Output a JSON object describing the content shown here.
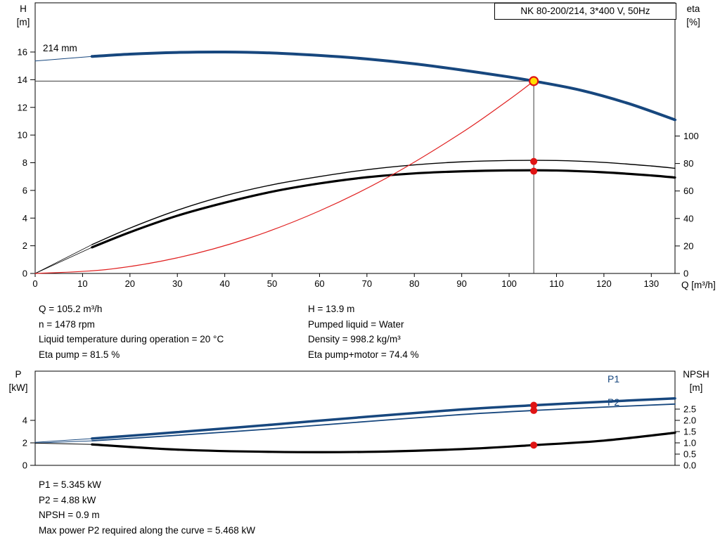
{
  "title_box": "NK 80-200/214, 3*400 V, 50Hz",
  "labels": {
    "h_axis": "H\n[m]",
    "eta_axis": "eta\n[%]",
    "q_axis": "Q [m³/h]",
    "p_axis": "P\n[kW]",
    "npsh_axis": "NPSH\n[m]",
    "impeller": "214 mm",
    "p1": "P1",
    "p2": "P2"
  },
  "info_top": {
    "left": [
      "Q = 105.2 m³/h",
      "n = 1478 rpm",
      "Liquid temperature during operation = 20 °C",
      "Eta pump = 81.5 %"
    ],
    "right": [
      "H = 13.9 m",
      "Pumped liquid = Water",
      "Density = 998.2 kg/m³",
      "Eta pump+motor = 74.4 %"
    ]
  },
  "info_bottom": [
    "P1 = 5.345 kW",
    "P2 = 4.88 kW",
    "NPSH = 0.9 m",
    "Max power P2 required along the curve = 5.468 kW"
  ],
  "colors": {
    "curve_blue": "#17477e",
    "curve_black": "#000000",
    "system_red": "#e02020",
    "duty_yellow": "#ffdf00",
    "dot_red": "#e01414",
    "axis": "#000000"
  },
  "chart_data": [
    {
      "type": "line",
      "title": "NK 80-200/214, 3*400 V, 50Hz",
      "xlabel": "Q [m³/h]",
      "ylabel_left": "H [m]",
      "ylabel_right": "eta [%]",
      "xlim": [
        0,
        135
      ],
      "ylim_left": [
        0,
        19.5
      ],
      "ylim_right": [
        0,
        100
      ],
      "x_ticks": [
        0,
        10,
        20,
        30,
        40,
        50,
        60,
        70,
        80,
        90,
        100,
        110,
        120,
        130
      ],
      "y_ticks_left": [
        0,
        2,
        4,
        6,
        8,
        10,
        12,
        14,
        16
      ],
      "y_ticks_right": [
        0,
        20,
        40,
        60,
        80,
        100
      ],
      "grid": false,
      "duty_point": {
        "q": 105.2,
        "h": 13.9
      },
      "series": [
        {
          "name": "efficiency-pump-lead-in",
          "axis": "eta",
          "color": "#000000",
          "width": 0.8,
          "points": [
            [
              0,
              0
            ],
            [
              12,
              21
            ]
          ]
        },
        {
          "name": "efficiency-pump-motor-lead-in",
          "axis": "eta",
          "color": "#000000",
          "width": 0.8,
          "points": [
            [
              0,
              0
            ],
            [
              12,
              19
            ]
          ]
        },
        {
          "name": "efficiency-pump",
          "axis": "eta",
          "color": "#000000",
          "width": 1.4,
          "points": [
            [
              12,
              21
            ],
            [
              20,
              33
            ],
            [
              30,
              46
            ],
            [
              40,
              56.5
            ],
            [
              50,
              64.5
            ],
            [
              60,
              70.5
            ],
            [
              70,
              75.5
            ],
            [
              80,
              79
            ],
            [
              90,
              81.2
            ],
            [
              100,
              82.2
            ],
            [
              110,
              82.2
            ],
            [
              120,
              80.8
            ],
            [
              130,
              78.2
            ],
            [
              135,
              76.5
            ]
          ]
        },
        {
          "name": "efficiency-pump-motor",
          "axis": "eta",
          "color": "#000000",
          "width": 3.2,
          "points": [
            [
              12,
              19
            ],
            [
              20,
              30
            ],
            [
              30,
              42
            ],
            [
              40,
              51.5
            ],
            [
              50,
              59.5
            ],
            [
              60,
              65.5
            ],
            [
              70,
              70
            ],
            [
              80,
              72.8
            ],
            [
              90,
              74.3
            ],
            [
              100,
              75
            ],
            [
              110,
              74.9
            ],
            [
              120,
              73.6
            ],
            [
              130,
              71.3
            ],
            [
              135,
              69.8
            ]
          ]
        },
        {
          "name": "system-curve",
          "axis": "H",
          "color": "#e02020",
          "width": 1.2,
          "points": [
            [
              0,
              0
            ],
            [
              15,
              0.28
            ],
            [
              30,
              1.13
            ],
            [
              45,
              2.54
            ],
            [
              60,
              4.52
            ],
            [
              75,
              7.06
            ],
            [
              90,
              10.17
            ],
            [
              100,
              12.56
            ],
            [
              105.2,
              13.9
            ]
          ]
        },
        {
          "name": "pump-curve-lead-in",
          "axis": "H",
          "color": "#17477e",
          "width": 1,
          "points": [
            [
              0,
              15.35
            ],
            [
              12,
              15.68
            ]
          ]
        },
        {
          "name": "pump-curve-214mm",
          "axis": "H",
          "color": "#17477e",
          "width": 4,
          "points": [
            [
              12,
              15.68
            ],
            [
              20,
              15.85
            ],
            [
              30,
              15.97
            ],
            [
              40,
              16.0
            ],
            [
              50,
              15.93
            ],
            [
              60,
              15.75
            ],
            [
              70,
              15.5
            ],
            [
              80,
              15.15
            ],
            [
              90,
              14.7
            ],
            [
              100,
              14.2
            ],
            [
              105.2,
              13.9
            ],
            [
              115,
              13.25
            ],
            [
              125,
              12.3
            ],
            [
              135,
              11.1
            ]
          ]
        }
      ],
      "markers": [
        {
          "q": 105.2,
          "value": 13.9,
          "axis": "H",
          "style": "duty"
        },
        {
          "q": 105.2,
          "value": 81.5,
          "axis": "eta",
          "style": "dot"
        },
        {
          "q": 105.2,
          "value": 74.4,
          "axis": "eta",
          "style": "dot"
        }
      ]
    },
    {
      "type": "line",
      "xlabel": "Q [m³/h]",
      "ylabel_left": "P [kW]",
      "ylabel_right": "NPSH [m]",
      "xlim": [
        0,
        135
      ],
      "ylim_left": [
        0,
        8.4
      ],
      "ylim_right": [
        0,
        4.2
      ],
      "y_ticks_left": [
        0,
        2,
        4
      ],
      "y_ticks_right": [
        "0.0",
        "0.5",
        "1.0",
        "1.5",
        "2.0",
        "2.5"
      ],
      "grid": false,
      "series": [
        {
          "name": "P1-lead-in",
          "axis": "P",
          "color": "#17477e",
          "width": 1,
          "points": [
            [
              0,
              2.05
            ],
            [
              12,
              2.38
            ]
          ]
        },
        {
          "name": "P2-lead-in",
          "axis": "P",
          "color": "#17477e",
          "width": 1,
          "points": [
            [
              0,
              1.98
            ],
            [
              12,
              2.18
            ]
          ]
        },
        {
          "name": "NPSH-lead-in",
          "axis": "NPSH",
          "color": "#000000",
          "width": 1,
          "points": [
            [
              0,
              0.99
            ],
            [
              12,
              0.93
            ]
          ]
        },
        {
          "name": "NPSH",
          "axis": "NPSH",
          "color": "#000000",
          "width": 3.2,
          "points": [
            [
              12,
              0.93
            ],
            [
              30,
              0.7
            ],
            [
              50,
              0.6
            ],
            [
              70,
              0.6
            ],
            [
              90,
              0.72
            ],
            [
              105.2,
              0.9
            ],
            [
              120,
              1.1
            ],
            [
              135,
              1.45
            ]
          ]
        },
        {
          "name": "P2",
          "axis": "P",
          "color": "#17477e",
          "width": 1.8,
          "points": [
            [
              12,
              2.18
            ],
            [
              30,
              2.67
            ],
            [
              50,
              3.25
            ],
            [
              70,
              3.9
            ],
            [
              90,
              4.52
            ],
            [
              105.2,
              4.88
            ],
            [
              120,
              5.18
            ],
            [
              135,
              5.45
            ]
          ]
        },
        {
          "name": "P1",
          "axis": "P",
          "color": "#17477e",
          "width": 3.5,
          "points": [
            [
              12,
              2.38
            ],
            [
              30,
              2.95
            ],
            [
              50,
              3.62
            ],
            [
              70,
              4.32
            ],
            [
              90,
              4.97
            ],
            [
              105.2,
              5.345
            ],
            [
              120,
              5.66
            ],
            [
              135,
              5.95
            ]
          ]
        }
      ],
      "markers": [
        {
          "q": 105.2,
          "value": 5.345,
          "axis": "P",
          "style": "dot"
        },
        {
          "q": 105.2,
          "value": 4.88,
          "axis": "P",
          "style": "dot"
        },
        {
          "q": 105.2,
          "value": 0.9,
          "axis": "NPSH",
          "style": "dot"
        }
      ]
    }
  ]
}
